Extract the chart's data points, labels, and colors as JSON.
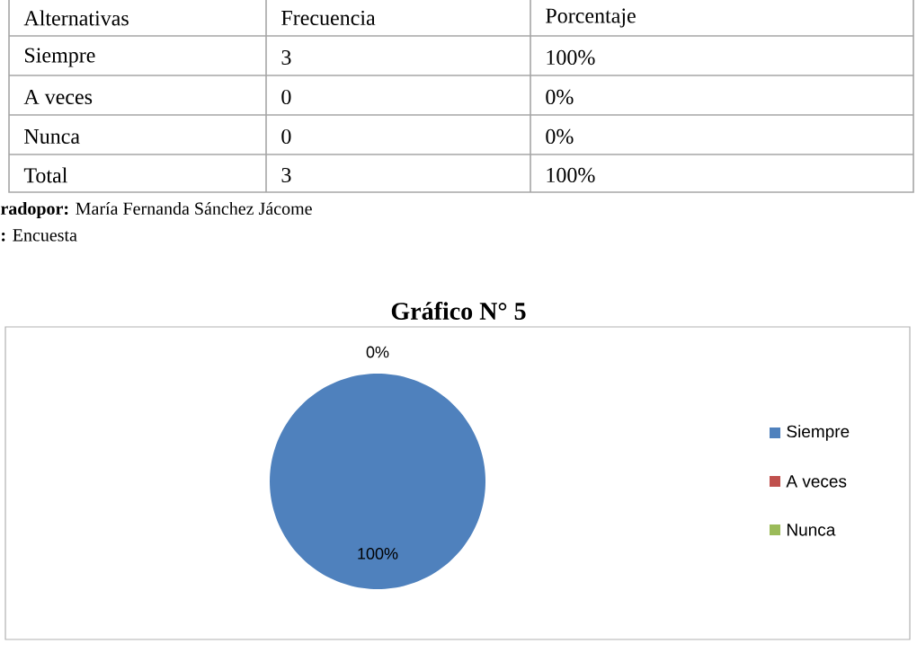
{
  "chart_data": {
    "type": "pie",
    "title": "Gráfico N° 5",
    "categories": [
      "Siempre",
      "A veces",
      "Nunca"
    ],
    "values": [
      100,
      0,
      0
    ],
    "colors": [
      "#4f81bd",
      "#c0504d",
      "#9bbb59"
    ],
    "value_labels": [
      "100%",
      "0%",
      null
    ],
    "legend": "right",
    "annotations": [
      "Alternativas",
      "Frecuencia",
      "Porcentaje",
      "Siempre",
      "3",
      "100%",
      "A veces",
      "0",
      "0%",
      "Nunca",
      "0",
      "0%",
      "Total",
      "3",
      "100%",
      "**radopor:** María Fernanda Sánchez Jácome",
      "**:** Encuesta"
    ]
  }
}
